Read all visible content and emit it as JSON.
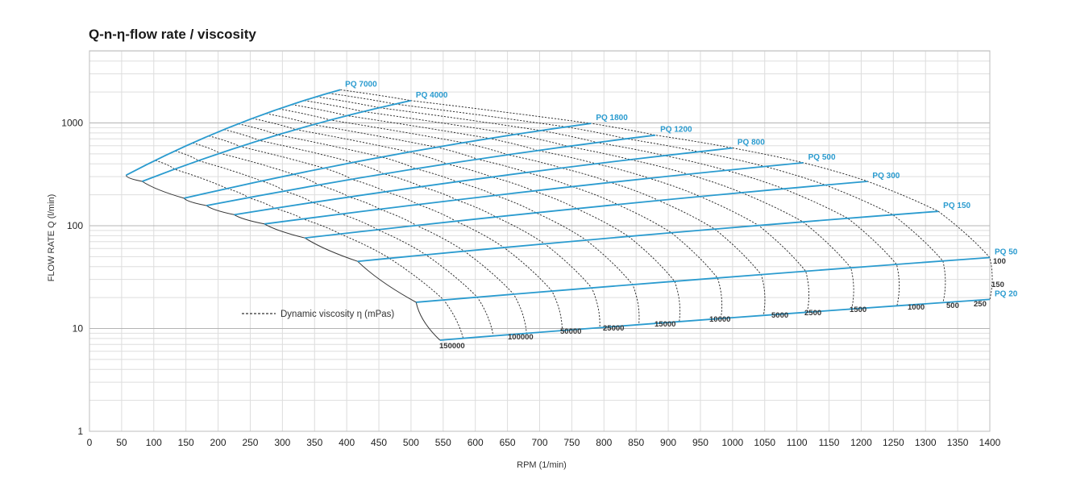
{
  "chart_data": {
    "type": "line",
    "title": "Q-n-η-flow rate / viscosity",
    "xlabel": "RPM (1/min)",
    "ylabel": "FLOW RATE Q (l/min)",
    "xlim": [
      0,
      1400
    ],
    "ylim": [
      1,
      4000
    ],
    "y_scale": "log",
    "grid": true,
    "x_ticks": [
      0,
      50,
      100,
      150,
      200,
      250,
      300,
      350,
      400,
      450,
      500,
      550,
      600,
      650,
      700,
      750,
      800,
      850,
      900,
      950,
      1000,
      1050,
      1100,
      1150,
      1200,
      1250,
      1300,
      1350,
      1400
    ],
    "y_ticks": [
      1,
      10,
      100,
      1000
    ],
    "series": [
      {
        "name": "PQ 7000",
        "x_start": 57,
        "y_start": 310,
        "x_end": 390,
        "y_end": 2100
      },
      {
        "name": "PQ 4000",
        "x_start": 82,
        "y_start": 270,
        "x_end": 500,
        "y_end": 1650
      },
      {
        "name": "PQ 1800",
        "x_start": 147,
        "y_start": 185,
        "x_end": 780,
        "y_end": 990
      },
      {
        "name": "PQ 1200",
        "x_start": 182,
        "y_start": 157,
        "x_end": 880,
        "y_end": 760
      },
      {
        "name": "PQ 800",
        "x_start": 225,
        "y_start": 128,
        "x_end": 1000,
        "y_end": 570
      },
      {
        "name": "PQ 500",
        "x_start": 272,
        "y_start": 104,
        "x_end": 1110,
        "y_end": 410
      },
      {
        "name": "PQ 300",
        "x_start": 335,
        "y_start": 76,
        "x_end": 1210,
        "y_end": 270
      },
      {
        "name": "PQ 150",
        "x_start": 417,
        "y_start": 45,
        "x_end": 1320,
        "y_end": 138
      },
      {
        "name": "PQ 50",
        "x_start": 508,
        "y_start": 18,
        "x_end": 1400,
        "y_end": 49
      },
      {
        "name": "PQ 20",
        "x_start": 545,
        "y_start": 7.7,
        "x_end": 1400,
        "y_end": 19.2
      }
    ],
    "viscosity_curves_label": "Dynamic viscosity η (mPas)",
    "viscosity_labels": [
      "150000",
      "100000",
      "50000",
      "25000",
      "15000",
      "10000",
      "5000",
      "2500",
      "1500",
      "1000",
      "500",
      "250",
      "150",
      "100"
    ]
  }
}
